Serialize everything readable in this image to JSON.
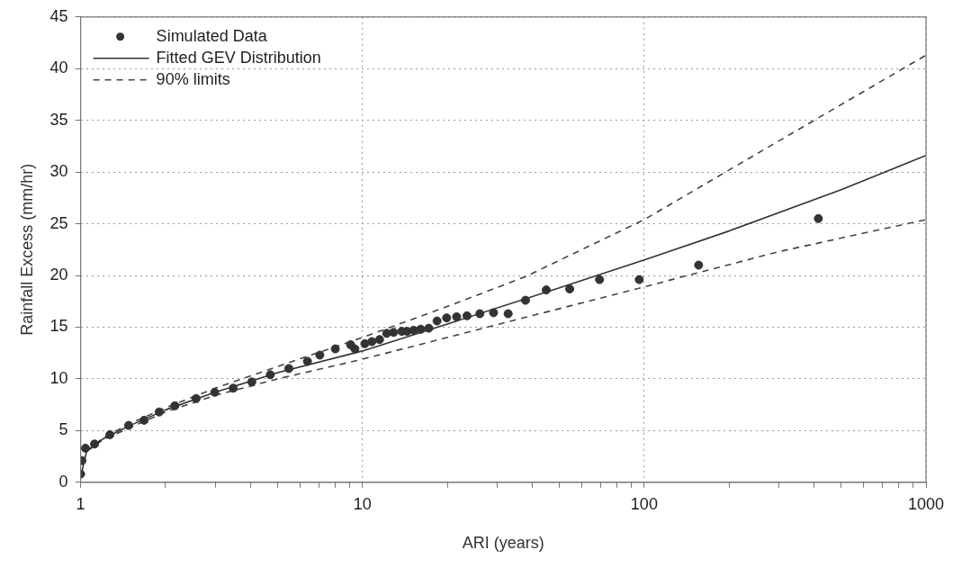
{
  "chart_data": {
    "type": "scatter",
    "xlabel": "ARI (years)",
    "ylabel": "Rainfall Excess (mm/hr)",
    "log": "x",
    "xlim": [
      1,
      1000
    ],
    "xticks": [
      1,
      {
        "value": 2,
        "label": null
      },
      {
        "value": 3,
        "label": null
      },
      {
        "value": 4,
        "label": null
      },
      {
        "value": 5,
        "label": null
      },
      {
        "value": 6,
        "label": null
      },
      {
        "value": 7,
        "label": null
      },
      {
        "value": 8,
        "label": null
      },
      {
        "value": 9,
        "label": null
      },
      10,
      {
        "value": 20,
        "label": null
      },
      {
        "value": 30,
        "label": null
      },
      {
        "value": 40,
        "label": null
      },
      {
        "value": 50,
        "label": null
      },
      {
        "value": 60,
        "label": null
      },
      {
        "value": 70,
        "label": null
      },
      {
        "value": 80,
        "label": null
      },
      {
        "value": 90,
        "label": null
      },
      100,
      {
        "value": 200,
        "label": null
      },
      {
        "value": 300,
        "label": null
      },
      {
        "value": 400,
        "label": null
      },
      {
        "value": 500,
        "label": null
      },
      {
        "value": 600,
        "label": null
      },
      {
        "value": 700,
        "label": null
      },
      {
        "value": 800,
        "label": null
      },
      {
        "value": 900,
        "label": null
      },
      1000
    ],
    "ylim": [
      0,
      45
    ],
    "yticks": [
      0,
      5,
      10,
      15,
      20,
      25,
      30,
      35,
      40,
      45
    ],
    "grid": true,
    "legend": "top left",
    "series": [
      {
        "name": "Simulated Data",
        "marker": "circle",
        "color": "#333333",
        "x": [
          1.0,
          1.01,
          1.04,
          1.12,
          1.27,
          1.48,
          1.68,
          1.9,
          2.16,
          2.57,
          2.99,
          3.48,
          4.05,
          4.71,
          5.48,
          6.38,
          7.06,
          8.01,
          9.08,
          9.4,
          10.2,
          10.8,
          11.5,
          12.2,
          12.9,
          13.8,
          14.4,
          15.2,
          16.1,
          17.2,
          18.4,
          19.9,
          21.6,
          23.5,
          26.1,
          29.2,
          32.9,
          37.9,
          44.9,
          54.4,
          69.4,
          96,
          156,
          415
        ],
        "values": [
          0.8,
          2.1,
          3.3,
          3.7,
          4.6,
          5.5,
          6.0,
          6.8,
          7.4,
          8.1,
          8.7,
          9.1,
          9.7,
          10.4,
          11.0,
          11.7,
          12.3,
          12.9,
          13.3,
          12.9,
          13.4,
          13.6,
          13.8,
          14.4,
          14.5,
          14.6,
          14.6,
          14.7,
          14.8,
          14.9,
          15.6,
          15.9,
          16.0,
          16.1,
          16.3,
          16.4,
          16.3,
          17.6,
          18.6,
          18.7,
          19.6,
          19.6,
          21.0,
          25.5
        ]
      },
      {
        "name": "Fitted GEV Distribution",
        "type": "line",
        "line_style": "solid",
        "color": "#333333",
        "x": [
          1.0,
          1.05,
          1.2,
          1.5,
          2,
          3,
          5,
          10,
          20,
          50,
          100,
          200,
          500,
          1000
        ],
        "values": [
          0.5,
          3.0,
          4.2,
          5.5,
          7.0,
          8.7,
          10.6,
          12.7,
          15.3,
          18.8,
          21.5,
          24.3,
          28.3,
          31.6
        ]
      },
      {
        "name": "90% limits",
        "type": "line",
        "line_style": "dashed",
        "color": "#444444",
        "x": [
          1.05,
          1.2,
          1.5,
          2,
          3,
          5,
          10,
          20,
          38,
          100,
          300,
          1000
        ],
        "values": [
          3.0,
          4.3,
          5.7,
          7.2,
          9.1,
          11.2,
          14.0,
          17.0,
          19.9,
          25.4,
          33.0,
          41.3
        ]
      },
      {
        "type": "line",
        "line_style": "dashed",
        "color": "#444444",
        "x": [
          1.05,
          1.2,
          1.5,
          2,
          3,
          5,
          10,
          26,
          100,
          300,
          1000
        ],
        "values": [
          3.0,
          4.1,
          5.3,
          6.8,
          8.4,
          10.0,
          11.9,
          14.8,
          18.9,
          22.3,
          25.4
        ]
      }
    ]
  }
}
